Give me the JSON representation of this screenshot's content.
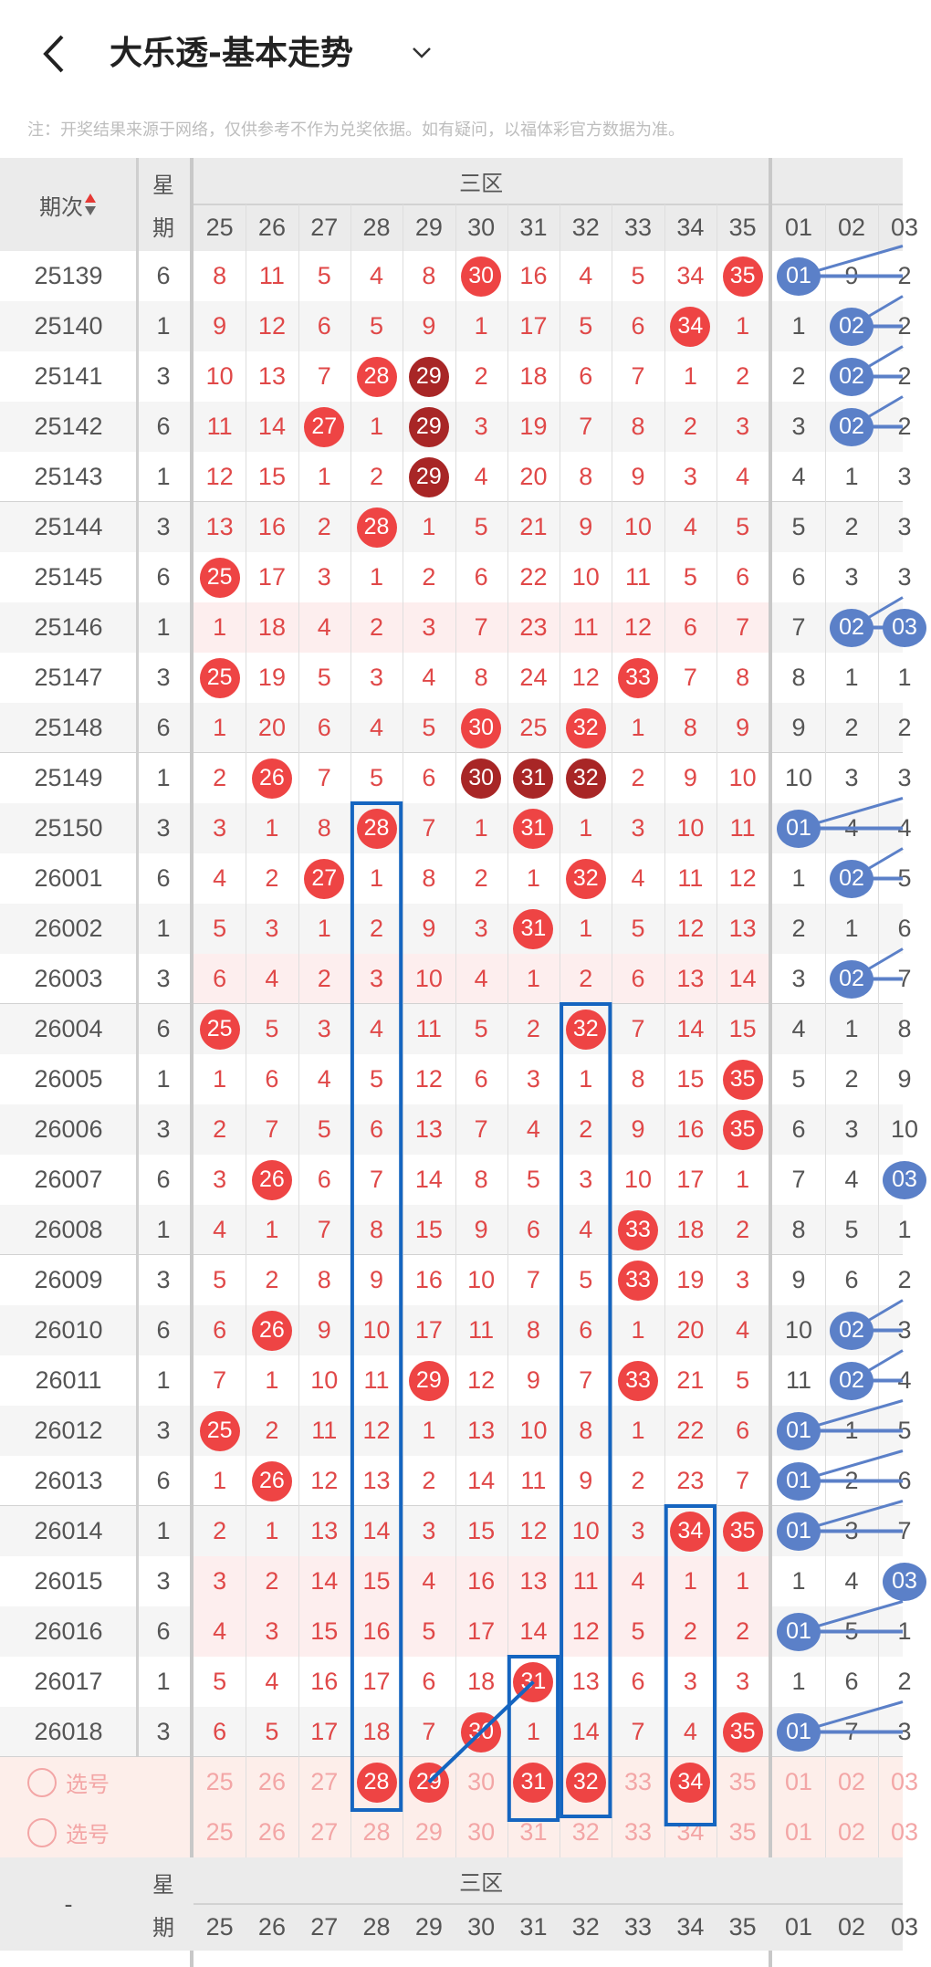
{
  "header": {
    "title": "大乐透-基本走势",
    "back_icon": "chevron-left-icon",
    "dropdown_icon": "chevron-down-icon"
  },
  "note": "注：开奖结果来源于网络，仅供参考不作为兑奖依据。如有疑问，以福体彩官方数据为准。",
  "table": {
    "period_header": "期次",
    "week_header_top": "星",
    "week_header_bottom": "期",
    "zone_header": "三区",
    "red_columns": [
      "25",
      "26",
      "27",
      "28",
      "29",
      "30",
      "31",
      "32",
      "33",
      "34",
      "35"
    ],
    "blue_columns": [
      "01",
      "02",
      "03"
    ],
    "colors": {
      "red": "#ee4444",
      "dark_red": "#a82626",
      "blue": "#5b80c8",
      "miss_text": "#e04848",
      "annotation": "#1565c0"
    },
    "rows": [
      {
        "period": "25139",
        "week": "6",
        "red": [
          "8",
          "11",
          "5",
          "4",
          "8",
          "30",
          "16",
          "4",
          "5",
          "34",
          "35"
        ],
        "blue": [
          "01",
          "9",
          "2"
        ],
        "hits": [
          "30",
          "35"
        ],
        "dark": [],
        "blue_hits": [
          "01"
        ],
        "pink": false
      },
      {
        "period": "25140",
        "week": "1",
        "red": [
          "9",
          "12",
          "6",
          "5",
          "9",
          "1",
          "17",
          "5",
          "6",
          "34",
          "1"
        ],
        "blue": [
          "1",
          "02",
          "2"
        ],
        "hits": [
          "34"
        ],
        "dark": [],
        "blue_hits": [
          "02"
        ],
        "pink": false
      },
      {
        "period": "25141",
        "week": "3",
        "red": [
          "10",
          "13",
          "7",
          "28",
          "29",
          "2",
          "18",
          "6",
          "7",
          "1",
          "2"
        ],
        "blue": [
          "2",
          "02",
          "2"
        ],
        "hits": [
          "28"
        ],
        "dark": [
          "29"
        ],
        "blue_hits": [
          "02"
        ],
        "pink": false
      },
      {
        "period": "25142",
        "week": "6",
        "red": [
          "11",
          "14",
          "27",
          "1",
          "29",
          "3",
          "19",
          "7",
          "8",
          "2",
          "3"
        ],
        "blue": [
          "3",
          "02",
          "2"
        ],
        "hits": [
          "27"
        ],
        "dark": [
          "29"
        ],
        "blue_hits": [
          "02"
        ],
        "pink": false
      },
      {
        "period": "25143",
        "week": "1",
        "red": [
          "12",
          "15",
          "1",
          "2",
          "29",
          "4",
          "20",
          "8",
          "9",
          "3",
          "4"
        ],
        "blue": [
          "4",
          "1",
          "3"
        ],
        "hits": [],
        "dark": [
          "29"
        ],
        "blue_hits": [],
        "pink": false
      },
      {
        "period": "25144",
        "week": "3",
        "red": [
          "13",
          "16",
          "2",
          "28",
          "1",
          "5",
          "21",
          "9",
          "10",
          "4",
          "5"
        ],
        "blue": [
          "5",
          "2",
          "3"
        ],
        "hits": [
          "28"
        ],
        "dark": [],
        "blue_hits": [],
        "pink": false
      },
      {
        "period": "25145",
        "week": "6",
        "red": [
          "25",
          "17",
          "3",
          "1",
          "2",
          "6",
          "22",
          "10",
          "11",
          "5",
          "6"
        ],
        "blue": [
          "6",
          "3",
          "3"
        ],
        "hits": [
          "25"
        ],
        "dark": [],
        "blue_hits": [],
        "pink": false
      },
      {
        "period": "25146",
        "week": "1",
        "red": [
          "1",
          "18",
          "4",
          "2",
          "3",
          "7",
          "23",
          "11",
          "12",
          "6",
          "7"
        ],
        "blue": [
          "7",
          "02",
          "03"
        ],
        "hits": [],
        "dark": [],
        "blue_hits": [
          "02",
          "03"
        ],
        "pink": true
      },
      {
        "period": "25147",
        "week": "3",
        "red": [
          "25",
          "19",
          "5",
          "3",
          "4",
          "8",
          "24",
          "12",
          "33",
          "7",
          "8"
        ],
        "blue": [
          "8",
          "1",
          "1"
        ],
        "hits": [
          "25",
          "33"
        ],
        "dark": [],
        "blue_hits": [],
        "pink": false
      },
      {
        "period": "25148",
        "week": "6",
        "red": [
          "1",
          "20",
          "6",
          "4",
          "5",
          "30",
          "25",
          "32",
          "1",
          "8",
          "9"
        ],
        "blue": [
          "9",
          "2",
          "2"
        ],
        "hits": [
          "30",
          "32"
        ],
        "dark": [],
        "blue_hits": [],
        "pink": false
      },
      {
        "period": "25149",
        "week": "1",
        "red": [
          "2",
          "26",
          "7",
          "5",
          "6",
          "30",
          "31",
          "32",
          "2",
          "9",
          "10"
        ],
        "blue": [
          "10",
          "3",
          "3"
        ],
        "hits": [
          "26"
        ],
        "dark": [
          "30",
          "31",
          "32"
        ],
        "blue_hits": [],
        "pink": false
      },
      {
        "period": "25150",
        "week": "3",
        "red": [
          "3",
          "1",
          "8",
          "28",
          "7",
          "1",
          "31",
          "1",
          "3",
          "10",
          "11"
        ],
        "blue": [
          "01",
          "4",
          "4"
        ],
        "hits": [
          "28",
          "31"
        ],
        "dark": [],
        "blue_hits": [
          "01"
        ],
        "pink": false
      },
      {
        "period": "26001",
        "week": "6",
        "red": [
          "4",
          "2",
          "27",
          "1",
          "8",
          "2",
          "1",
          "32",
          "4",
          "11",
          "12"
        ],
        "blue": [
          "1",
          "02",
          "5"
        ],
        "hits": [
          "27",
          "32"
        ],
        "dark": [],
        "blue_hits": [
          "02"
        ],
        "pink": false
      },
      {
        "period": "26002",
        "week": "1",
        "red": [
          "5",
          "3",
          "1",
          "2",
          "9",
          "3",
          "31",
          "1",
          "5",
          "12",
          "13"
        ],
        "blue": [
          "2",
          "1",
          "6"
        ],
        "hits": [
          "31"
        ],
        "dark": [],
        "blue_hits": [],
        "pink": false
      },
      {
        "period": "26003",
        "week": "3",
        "red": [
          "6",
          "4",
          "2",
          "3",
          "10",
          "4",
          "1",
          "2",
          "6",
          "13",
          "14"
        ],
        "blue": [
          "3",
          "02",
          "7"
        ],
        "hits": [],
        "dark": [],
        "blue_hits": [
          "02"
        ],
        "pink": true
      },
      {
        "period": "26004",
        "week": "6",
        "red": [
          "25",
          "5",
          "3",
          "4",
          "11",
          "5",
          "2",
          "32",
          "7",
          "14",
          "15"
        ],
        "blue": [
          "4",
          "1",
          "8"
        ],
        "hits": [
          "25",
          "32"
        ],
        "dark": [],
        "blue_hits": [],
        "pink": false
      },
      {
        "period": "26005",
        "week": "1",
        "red": [
          "1",
          "6",
          "4",
          "5",
          "12",
          "6",
          "3",
          "1",
          "8",
          "15",
          "35"
        ],
        "blue": [
          "5",
          "2",
          "9"
        ],
        "hits": [
          "35"
        ],
        "dark": [],
        "blue_hits": [],
        "pink": false
      },
      {
        "period": "26006",
        "week": "3",
        "red": [
          "2",
          "7",
          "5",
          "6",
          "13",
          "7",
          "4",
          "2",
          "9",
          "16",
          "35"
        ],
        "blue": [
          "6",
          "3",
          "10"
        ],
        "hits": [
          "35"
        ],
        "dark": [],
        "blue_hits": [],
        "pink": false
      },
      {
        "period": "26007",
        "week": "6",
        "red": [
          "3",
          "26",
          "6",
          "7",
          "14",
          "8",
          "5",
          "3",
          "10",
          "17",
          "1"
        ],
        "blue": [
          "7",
          "4",
          "03"
        ],
        "hits": [
          "26"
        ],
        "dark": [],
        "blue_hits": [
          "03"
        ],
        "pink": false
      },
      {
        "period": "26008",
        "week": "1",
        "red": [
          "4",
          "1",
          "7",
          "8",
          "15",
          "9",
          "6",
          "4",
          "33",
          "18",
          "2"
        ],
        "blue": [
          "8",
          "5",
          "1"
        ],
        "hits": [
          "33"
        ],
        "dark": [],
        "blue_hits": [],
        "pink": false
      },
      {
        "period": "26009",
        "week": "3",
        "red": [
          "5",
          "2",
          "8",
          "9",
          "16",
          "10",
          "7",
          "5",
          "33",
          "19",
          "3"
        ],
        "blue": [
          "9",
          "6",
          "2"
        ],
        "hits": [
          "33"
        ],
        "dark": [],
        "blue_hits": [],
        "pink": false
      },
      {
        "period": "26010",
        "week": "6",
        "red": [
          "6",
          "26",
          "9",
          "10",
          "17",
          "11",
          "8",
          "6",
          "1",
          "20",
          "4"
        ],
        "blue": [
          "10",
          "02",
          "3"
        ],
        "hits": [
          "26"
        ],
        "dark": [],
        "blue_hits": [
          "02"
        ],
        "pink": false
      },
      {
        "period": "26011",
        "week": "1",
        "red": [
          "7",
          "1",
          "10",
          "11",
          "29",
          "12",
          "9",
          "7",
          "33",
          "21",
          "5"
        ],
        "blue": [
          "11",
          "02",
          "4"
        ],
        "hits": [
          "29",
          "33"
        ],
        "dark": [],
        "blue_hits": [
          "02"
        ],
        "pink": false
      },
      {
        "period": "26012",
        "week": "3",
        "red": [
          "25",
          "2",
          "11",
          "12",
          "1",
          "13",
          "10",
          "8",
          "1",
          "22",
          "6"
        ],
        "blue": [
          "01",
          "1",
          "5"
        ],
        "hits": [
          "25"
        ],
        "dark": [],
        "blue_hits": [
          "01"
        ],
        "pink": false
      },
      {
        "period": "26013",
        "week": "6",
        "red": [
          "1",
          "26",
          "12",
          "13",
          "2",
          "14",
          "11",
          "9",
          "2",
          "23",
          "7"
        ],
        "blue": [
          "01",
          "2",
          "6"
        ],
        "hits": [
          "26"
        ],
        "dark": [],
        "blue_hits": [
          "01"
        ],
        "pink": false
      },
      {
        "period": "26014",
        "week": "1",
        "red": [
          "2",
          "1",
          "13",
          "14",
          "3",
          "15",
          "12",
          "10",
          "3",
          "34",
          "35"
        ],
        "blue": [
          "01",
          "3",
          "7"
        ],
        "hits": [
          "34",
          "35"
        ],
        "dark": [],
        "blue_hits": [
          "01"
        ],
        "pink": false
      },
      {
        "period": "26015",
        "week": "3",
        "red": [
          "3",
          "2",
          "14",
          "15",
          "4",
          "16",
          "13",
          "11",
          "4",
          "1",
          "1"
        ],
        "blue": [
          "1",
          "4",
          "03"
        ],
        "hits": [],
        "dark": [],
        "blue_hits": [
          "03"
        ],
        "pink": true
      },
      {
        "period": "26016",
        "week": "6",
        "red": [
          "4",
          "3",
          "15",
          "16",
          "5",
          "17",
          "14",
          "12",
          "5",
          "2",
          "2"
        ],
        "blue": [
          "01",
          "5",
          "1"
        ],
        "hits": [],
        "dark": [],
        "blue_hits": [
          "01"
        ],
        "pink": true
      },
      {
        "period": "26017",
        "week": "1",
        "red": [
          "5",
          "4",
          "16",
          "17",
          "6",
          "18",
          "31",
          "13",
          "6",
          "3",
          "3"
        ],
        "blue": [
          "1",
          "6",
          "2"
        ],
        "hits": [
          "31"
        ],
        "dark": [],
        "blue_hits": [],
        "pink": false
      },
      {
        "period": "26018",
        "week": "3",
        "red": [
          "6",
          "5",
          "17",
          "18",
          "7",
          "30",
          "1",
          "14",
          "7",
          "4",
          "35"
        ],
        "blue": [
          "01",
          "7",
          "3"
        ],
        "hits": [
          "30",
          "35"
        ],
        "dark": [],
        "blue_hits": [
          "01"
        ],
        "pink": false
      }
    ],
    "select_rows": [
      {
        "label": "选号",
        "selected": [
          "28",
          "29",
          "31",
          "32",
          "34"
        ]
      },
      {
        "label": "选号",
        "selected": []
      }
    ],
    "footer_period": "-"
  }
}
